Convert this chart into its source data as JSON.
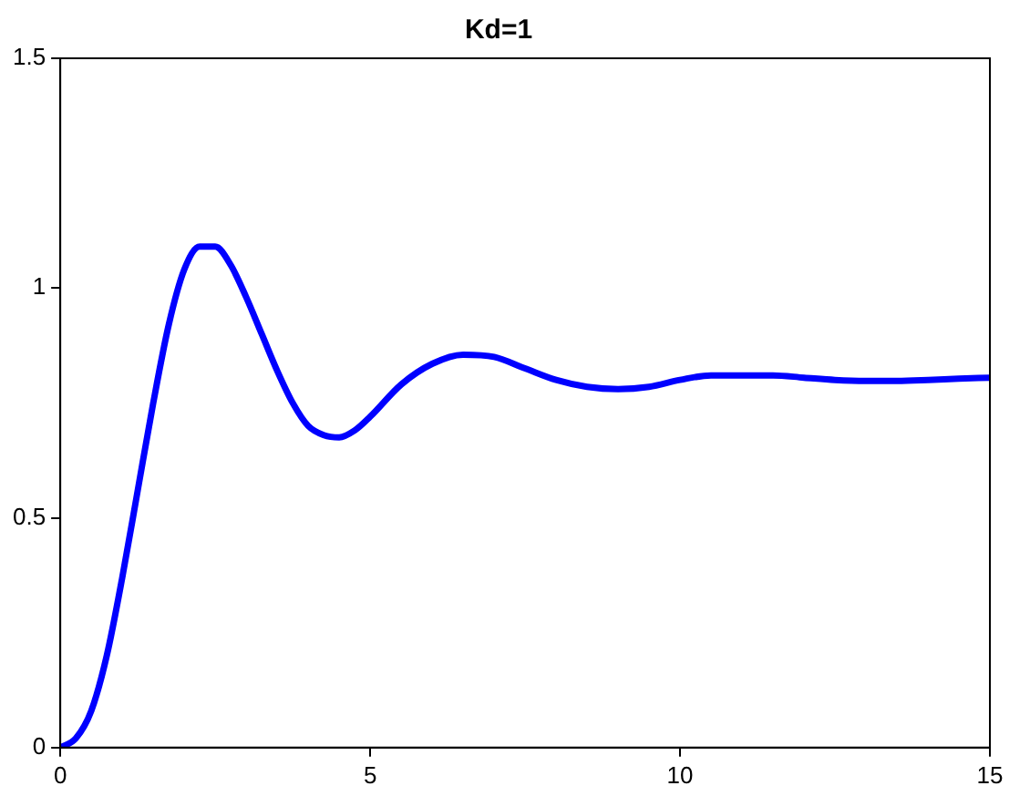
{
  "chart_data": {
    "type": "line",
    "title": "Kd=1",
    "x": [
      0,
      0.25,
      0.5,
      0.75,
      1,
      1.25,
      1.5,
      1.75,
      2,
      2.25,
      2.5,
      2.75,
      3,
      3.25,
      3.5,
      3.75,
      4,
      4.25,
      4.5,
      4.75,
      5,
      5.5,
      6,
      6.5,
      7,
      7.5,
      8,
      8.5,
      9,
      9.5,
      10,
      10.5,
      11,
      11.5,
      12,
      12.5,
      13,
      13.5,
      14,
      14.5,
      15
    ],
    "series": [
      {
        "color": "#0000ff",
        "values": [
          0,
          0.02,
          0.08,
          0.2,
          0.37,
          0.56,
          0.75,
          0.92,
          1.04,
          1.09,
          1.09,
          1.05,
          0.98,
          0.9,
          0.82,
          0.75,
          0.7,
          0.68,
          0.675,
          0.69,
          0.72,
          0.79,
          0.835,
          0.855,
          0.85,
          0.825,
          0.8,
          0.785,
          0.78,
          0.785,
          0.8,
          0.81,
          0.81,
          0.81,
          0.805,
          0.8,
          0.798,
          0.798,
          0.8,
          0.803,
          0.805
        ]
      }
    ],
    "xlim": [
      0,
      15
    ],
    "xticks": [
      0,
      5,
      10,
      15
    ],
    "ylim": [
      0,
      1.5
    ],
    "yticks": [
      0,
      0.5,
      1,
      1.5
    ],
    "grid": false,
    "legend": false,
    "marker": "none",
    "line_style": "solid"
  }
}
